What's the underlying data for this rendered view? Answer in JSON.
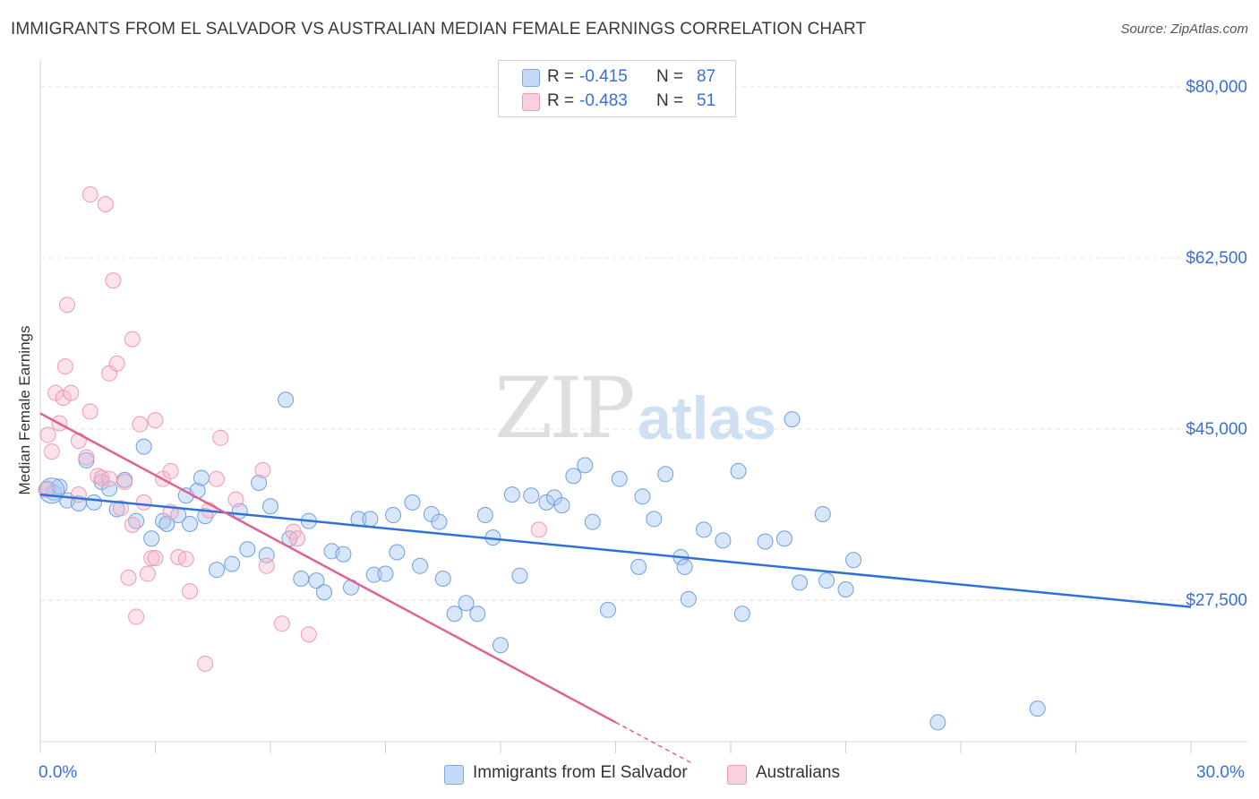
{
  "title": "IMMIGRANTS FROM EL SALVADOR VS AUSTRALIAN MEDIAN FEMALE EARNINGS CORRELATION CHART",
  "source": "Source: ZipAtlas.com",
  "watermark": {
    "zip": "ZIP",
    "atlas": "atlas"
  },
  "legend": {
    "rows": [
      {
        "r_label": "R =",
        "r_value": "-0.415",
        "n_label": "N =",
        "n_value": "87",
        "color": "#a9c8f2"
      },
      {
        "r_label": "R =",
        "r_value": "-0.483",
        "n_label": "N =",
        "n_value": "51",
        "color": "#f7b7cb"
      }
    ]
  },
  "bottom_legend": {
    "series1": "Immigrants from El Salvador",
    "series2": "Australians"
  },
  "colors": {
    "blue_fill": "#a9c8f2",
    "blue_line": "#2f72d6",
    "pink_fill": "#f7b7cb",
    "pink_line": "#e0628f",
    "tick_text": "#3b6fd0"
  },
  "chart_data": {
    "type": "scatter",
    "title": "IMMIGRANTS FROM EL SALVADOR VS AUSTRALIAN MEDIAN FEMALE EARNINGS CORRELATION CHART",
    "xlabel": "",
    "ylabel": "Median Female Earnings",
    "xlim": [
      0,
      30
    ],
    "ylim": [
      10000,
      85000
    ],
    "x_tick_labels": [
      "0.0%",
      "30.0%"
    ],
    "y_ticks": [
      80000,
      62500,
      45000,
      27500
    ],
    "y_tick_labels": [
      "$80,000",
      "$62,500",
      "$45,000",
      "$27,500"
    ],
    "grid": true,
    "series": [
      {
        "name": "Immigrants from El Salvador",
        "color": "#a9c8f2",
        "trend": {
          "x": [
            0.0,
            30.0
          ],
          "y": [
            38300,
            26800
          ]
        },
        "points": [
          [
            0.2,
            38900
          ],
          [
            0.35,
            38500
          ],
          [
            0.5,
            39100
          ],
          [
            0.7,
            37700
          ],
          [
            1.0,
            37400
          ],
          [
            1.2,
            41800
          ],
          [
            1.4,
            37500
          ],
          [
            1.6,
            39600
          ],
          [
            1.8,
            38900
          ],
          [
            2.0,
            36800
          ],
          [
            2.2,
            39800
          ],
          [
            2.5,
            35600
          ],
          [
            2.7,
            43200
          ],
          [
            2.9,
            33800
          ],
          [
            3.2,
            35600
          ],
          [
            3.3,
            35300
          ],
          [
            3.6,
            36200
          ],
          [
            3.8,
            38200
          ],
          [
            3.9,
            35300
          ],
          [
            4.1,
            38700
          ],
          [
            4.3,
            36100
          ],
          [
            4.2,
            40000
          ],
          [
            4.6,
            30600
          ],
          [
            5.0,
            31200
          ],
          [
            5.2,
            36600
          ],
          [
            5.4,
            32700
          ],
          [
            5.7,
            39500
          ],
          [
            5.9,
            32100
          ],
          [
            6.0,
            37100
          ],
          [
            6.4,
            48000
          ],
          [
            6.5,
            33800
          ],
          [
            6.8,
            29700
          ],
          [
            7.0,
            35600
          ],
          [
            7.2,
            29500
          ],
          [
            7.4,
            28300
          ],
          [
            7.6,
            32500
          ],
          [
            7.9,
            32200
          ],
          [
            8.1,
            28800
          ],
          [
            8.3,
            35800
          ],
          [
            8.6,
            35800
          ],
          [
            8.7,
            30100
          ],
          [
            9.0,
            30200
          ],
          [
            9.2,
            36200
          ],
          [
            9.3,
            32400
          ],
          [
            9.7,
            37500
          ],
          [
            9.9,
            31000
          ],
          [
            10.2,
            36300
          ],
          [
            10.4,
            35500
          ],
          [
            10.5,
            29700
          ],
          [
            10.8,
            26100
          ],
          [
            11.1,
            27200
          ],
          [
            11.4,
            26100
          ],
          [
            11.6,
            36200
          ],
          [
            11.8,
            33900
          ],
          [
            12.0,
            22900
          ],
          [
            12.3,
            38300
          ],
          [
            12.5,
            30000
          ],
          [
            12.8,
            38200
          ],
          [
            13.2,
            37500
          ],
          [
            13.4,
            38000
          ],
          [
            13.6,
            37200
          ],
          [
            13.9,
            40200
          ],
          [
            14.2,
            41300
          ],
          [
            14.4,
            35500
          ],
          [
            14.8,
            26500
          ],
          [
            15.1,
            39900
          ],
          [
            15.7,
            38100
          ],
          [
            15.6,
            30900
          ],
          [
            16.0,
            35800
          ],
          [
            16.3,
            40400
          ],
          [
            16.7,
            31900
          ],
          [
            16.9,
            27600
          ],
          [
            17.3,
            34700
          ],
          [
            16.8,
            30900
          ],
          [
            17.8,
            33600
          ],
          [
            18.2,
            40700
          ],
          [
            18.3,
            26100
          ],
          [
            18.9,
            33500
          ],
          [
            19.4,
            33800
          ],
          [
            19.6,
            46000
          ],
          [
            19.8,
            29300
          ],
          [
            20.4,
            36300
          ],
          [
            20.5,
            29500
          ],
          [
            21.0,
            28600
          ],
          [
            21.2,
            31600
          ],
          [
            23.4,
            15000
          ],
          [
            26.0,
            16400
          ]
        ]
      },
      {
        "name": "Australians",
        "color": "#f7b7cb",
        "trend": {
          "x": [
            0.0,
            15.0
          ],
          "y": [
            46600,
            15000
          ]
        },
        "trend_dashed": {
          "x": [
            15.0,
            17.0
          ],
          "y": [
            15000,
            10800
          ]
        },
        "points": [
          [
            0.15,
            38800
          ],
          [
            0.2,
            44400
          ],
          [
            0.3,
            42700
          ],
          [
            0.4,
            48700
          ],
          [
            0.5,
            45600
          ],
          [
            0.6,
            48200
          ],
          [
            0.65,
            51400
          ],
          [
            0.7,
            57700
          ],
          [
            0.8,
            48700
          ],
          [
            1.0,
            38300
          ],
          [
            1.0,
            43800
          ],
          [
            1.2,
            42100
          ],
          [
            1.3,
            46800
          ],
          [
            1.3,
            69000
          ],
          [
            1.5,
            40200
          ],
          [
            1.6,
            40000
          ],
          [
            1.7,
            68000
          ],
          [
            1.8,
            50700
          ],
          [
            1.8,
            39900
          ],
          [
            1.9,
            60200
          ],
          [
            2.0,
            51700
          ],
          [
            2.1,
            36900
          ],
          [
            2.2,
            39600
          ],
          [
            2.3,
            29800
          ],
          [
            2.4,
            35200
          ],
          [
            2.4,
            54200
          ],
          [
            2.5,
            25800
          ],
          [
            2.6,
            45500
          ],
          [
            2.7,
            37500
          ],
          [
            2.8,
            30200
          ],
          [
            2.9,
            31800
          ],
          [
            3.0,
            45900
          ],
          [
            3.0,
            31800
          ],
          [
            3.2,
            39900
          ],
          [
            3.4,
            40700
          ],
          [
            3.4,
            36500
          ],
          [
            3.6,
            31900
          ],
          [
            3.8,
            31700
          ],
          [
            3.9,
            28400
          ],
          [
            4.3,
            21000
          ],
          [
            4.4,
            36700
          ],
          [
            4.6,
            39900
          ],
          [
            4.7,
            44100
          ],
          [
            5.1,
            37800
          ],
          [
            5.8,
            40800
          ],
          [
            5.9,
            31000
          ],
          [
            6.3,
            25100
          ],
          [
            6.6,
            34500
          ],
          [
            7.0,
            24000
          ],
          [
            13.0,
            34700
          ],
          [
            6.7,
            33800
          ]
        ]
      }
    ]
  }
}
